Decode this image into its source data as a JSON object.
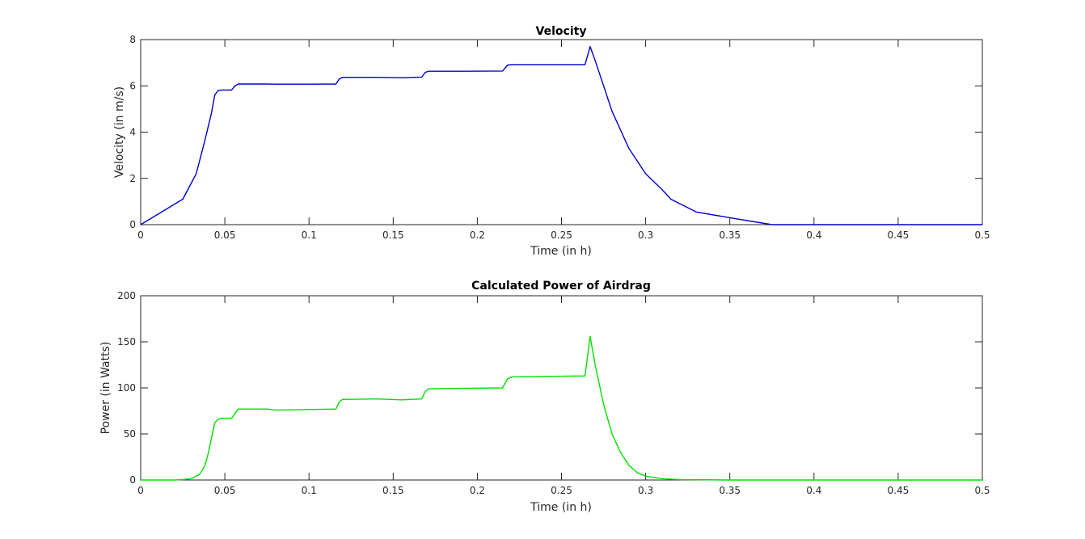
{
  "chart_data": [
    {
      "type": "line",
      "title": "Velocity",
      "xlabel": "Time (in h)",
      "ylabel": "Velocity (in m/s)",
      "xlim": [
        0,
        0.5
      ],
      "ylim": [
        0,
        8
      ],
      "xticks": [
        0,
        0.05,
        0.1,
        0.15,
        0.2,
        0.25,
        0.3,
        0.35,
        0.4,
        0.45,
        0.5
      ],
      "xtick_labels": [
        "0",
        "0.05",
        "0.1",
        "0.15",
        "0.2",
        "0.25",
        "0.3",
        "0.35",
        "0.4",
        "0.45",
        "0.5"
      ],
      "yticks": [
        0,
        2,
        4,
        6,
        8
      ],
      "ytick_labels": [
        "0",
        "2",
        "4",
        "6",
        "8"
      ],
      "grid": false,
      "series": [
        {
          "color": "#0000cc",
          "x": [
            0,
            0.025,
            0.033,
            0.038,
            0.042,
            0.044,
            0.046,
            0.048,
            0.054,
            0.056,
            0.058,
            0.075,
            0.08,
            0.1,
            0.116,
            0.118,
            0.12,
            0.14,
            0.155,
            0.167,
            0.169,
            0.171,
            0.19,
            0.215,
            0.218,
            0.221,
            0.24,
            0.264,
            0.267,
            0.27,
            0.275,
            0.28,
            0.29,
            0.3,
            0.31,
            0.315,
            0.33,
            0.35,
            0.375,
            0.4,
            0.5
          ],
          "y": [
            0,
            1.1,
            2.2,
            3.6,
            4.8,
            5.6,
            5.8,
            5.82,
            5.82,
            6.0,
            6.08,
            6.08,
            6.07,
            6.07,
            6.08,
            6.3,
            6.37,
            6.37,
            6.35,
            6.38,
            6.58,
            6.63,
            6.63,
            6.64,
            6.9,
            6.92,
            6.92,
            6.92,
            7.7,
            7.1,
            6.0,
            4.9,
            3.3,
            2.2,
            1.5,
            1.1,
            0.55,
            0.3,
            0,
            0,
            0
          ]
        }
      ]
    },
    {
      "type": "line",
      "title": "Calculated Power of Airdrag",
      "xlabel": "Time (in h)",
      "ylabel": "Power (in Watts)",
      "xlim": [
        0,
        0.5
      ],
      "ylim": [
        0,
        200
      ],
      "xticks": [
        0,
        0.05,
        0.1,
        0.15,
        0.2,
        0.25,
        0.3,
        0.35,
        0.4,
        0.45,
        0.5
      ],
      "xtick_labels": [
        "0",
        "0.05",
        "0.1",
        "0.15",
        "0.2",
        "0.25",
        "0.3",
        "0.35",
        "0.4",
        "0.45",
        "0.5"
      ],
      "yticks": [
        0,
        50,
        100,
        150,
        200
      ],
      "ytick_labels": [
        "0",
        "50",
        "100",
        "150",
        "200"
      ],
      "grid": false,
      "series": [
        {
          "color": "#00e000",
          "x": [
            0,
            0.02,
            0.025,
            0.03,
            0.035,
            0.038,
            0.04,
            0.042,
            0.044,
            0.046,
            0.048,
            0.054,
            0.056,
            0.058,
            0.075,
            0.08,
            0.1,
            0.116,
            0.118,
            0.12,
            0.14,
            0.155,
            0.167,
            0.169,
            0.171,
            0.19,
            0.215,
            0.218,
            0.221,
            0.24,
            0.264,
            0.267,
            0.27,
            0.275,
            0.28,
            0.285,
            0.29,
            0.295,
            0.3,
            0.31,
            0.32,
            0.35,
            0.5
          ],
          "y": [
            0,
            0,
            0.5,
            1.5,
            6,
            15,
            28,
            45,
            62,
            66,
            67,
            67,
            72,
            77,
            77,
            76,
            76.5,
            77,
            85,
            87.5,
            88,
            87,
            88,
            96,
            99,
            99.5,
            100,
            110,
            112,
            112.5,
            113,
            156,
            125,
            82,
            50,
            30,
            16,
            8,
            4,
            1.5,
            0.5,
            0,
            0
          ]
        }
      ]
    }
  ]
}
